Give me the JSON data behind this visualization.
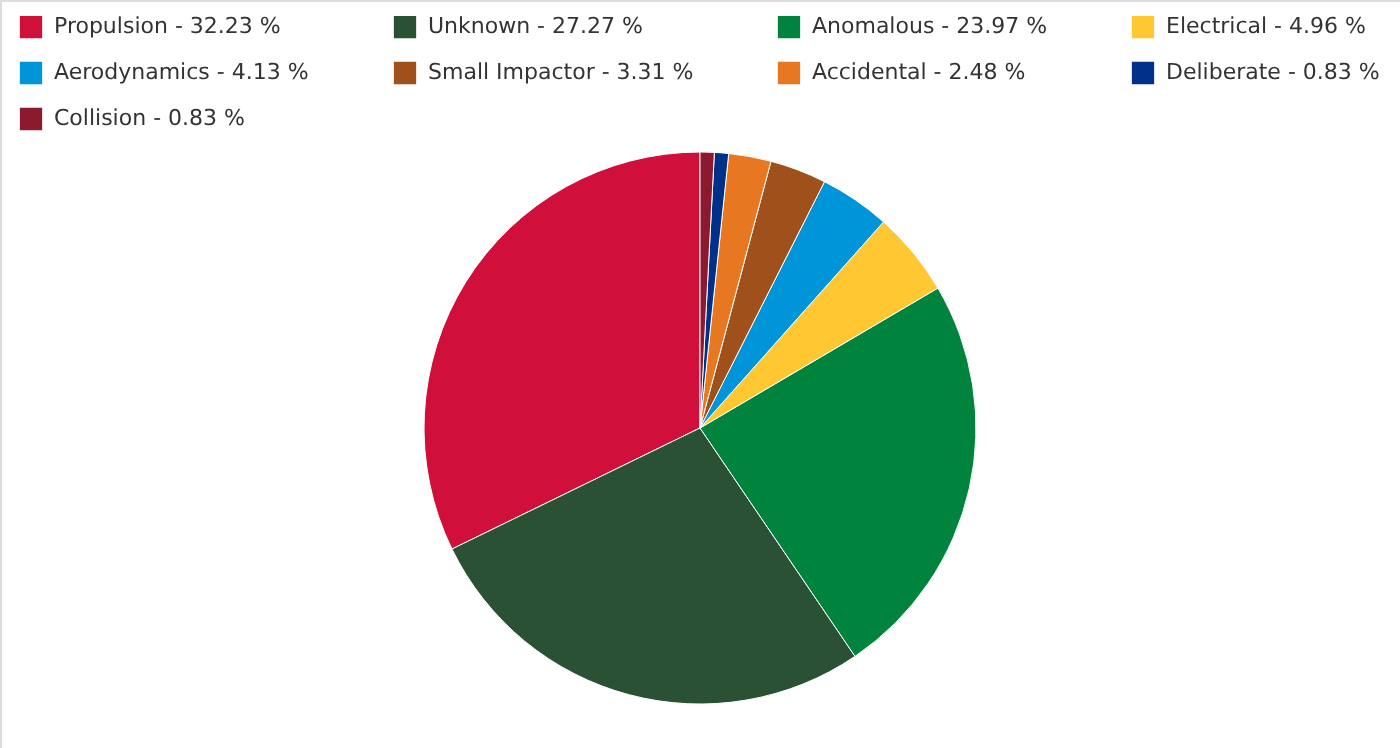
{
  "chart_data": {
    "type": "pie",
    "categories": [
      "Propulsion - 32.23 %",
      "Unknown - 27.27 %",
      "Anomalous - 23.97 %",
      "Electrical - 4.96 %",
      "Aerodynamics - 4.13 %",
      "Small Impactor - 3.31 %",
      "Accidental - 2.48 %",
      "Deliberate - 0.83 %",
      "Collision - 0.83 %"
    ],
    "values": [
      32.23,
      27.27,
      23.97,
      4.96,
      4.13,
      3.31,
      2.48,
      0.83,
      0.83
    ],
    "colors": [
      "#d0103a",
      "#2b5134",
      "#00843d",
      "#ffc832",
      "#0095d9",
      "#a0501a",
      "#e87722",
      "#003087",
      "#8b1a2e"
    ],
    "legend": "top left"
  }
}
